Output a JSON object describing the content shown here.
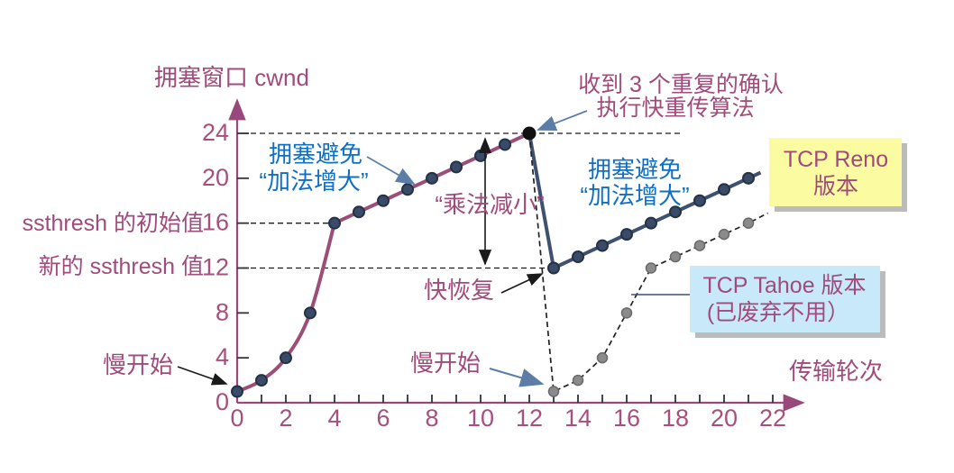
{
  "title": {
    "y_axis": "拥塞窗口 cwnd",
    "x_axis": "传输轮次"
  },
  "labels": {
    "ssthresh_initial": "ssthresh 的初始值",
    "ssthresh_new": "新的 ssthresh 值",
    "slow_start_left": "慢开始",
    "slow_start_mid": "慢开始",
    "fast_recovery": "快恢复",
    "multiplicative_decrease": "“乘法减小”",
    "congestion_avoidance_1_line1": "拥塞避免",
    "congestion_avoidance_1_line2": "“加法增大”",
    "congestion_avoidance_2_line1": "拥塞避免",
    "congestion_avoidance_2_line2": "“加法增大”",
    "dup_ack_line1": "收到 3 个重复的确认",
    "dup_ack_line2": "执行快重传算法",
    "reno_box_line1": "TCP Reno",
    "reno_box_line2": "版本",
    "tahoe_box_line1": "TCP Tahoe 版本",
    "tahoe_box_line2": "(已废弃不用）"
  },
  "colors": {
    "axis": "#98487A",
    "tick": "#333333",
    "tick_label": "#A4517E",
    "text_purple": "#A04B7C",
    "text_blue": "#0F6FC5",
    "guide_dash": "#1A1A1A",
    "arrow_steel": "#5C7EA6",
    "arrow_black": "#1A1A1A",
    "reno_box_bg": "#FBFBA2",
    "tahoe_box_bg": "#C8E9F9",
    "box_shadow": "#BBBBBB"
  },
  "chart_data": {
    "type": "line",
    "xlabel": "传输轮次",
    "ylabel": "拥塞窗口 cwnd",
    "xlim": [
      0,
      22
    ],
    "ylim": [
      0,
      24
    ],
    "x_major_ticks": [
      0,
      2,
      4,
      6,
      8,
      10,
      12,
      14,
      16,
      18,
      20,
      22
    ],
    "x_minor_step": 1,
    "y_ticks": [
      0,
      4,
      8,
      12,
      16,
      20,
      24
    ],
    "ssthresh_initial_value": 16,
    "ssthresh_new_value": 12,
    "series": [
      {
        "name": "reno-slow-start-and-congestion-avoidance",
        "style": "solid",
        "color": "#9C4E78",
        "width": 4,
        "smooth_until_index": 4,
        "points": [
          [
            0,
            1
          ],
          [
            1,
            2
          ],
          [
            2,
            4
          ],
          [
            3,
            8
          ],
          [
            4,
            16
          ],
          [
            5,
            17
          ],
          [
            6,
            18
          ],
          [
            7,
            19
          ],
          [
            8,
            20
          ],
          [
            9,
            21
          ],
          [
            10,
            22
          ],
          [
            11,
            23
          ],
          [
            12,
            24
          ]
        ],
        "dot": {
          "fill": "#3A4B68",
          "stroke": "#243248",
          "r": 6,
          "sw": 2
        },
        "last_dot": {
          "fill": "#111111",
          "stroke": "#111111",
          "r": 7,
          "sw": 1
        }
      },
      {
        "name": "tcp-reno-fast-recovery",
        "style": "solid",
        "color": "#3E5170",
        "width": 4,
        "skip_first_dot": true,
        "points": [
          [
            12,
            24
          ],
          [
            13,
            12
          ],
          [
            14,
            13
          ],
          [
            15,
            14
          ],
          [
            16,
            15
          ],
          [
            17,
            16
          ],
          [
            18,
            17
          ],
          [
            19,
            18
          ],
          [
            20,
            19
          ],
          [
            21,
            20
          ]
        ],
        "extend_to": [
          21.5,
          20.5
        ],
        "dot": {
          "fill": "#3A4B68",
          "stroke": "#243248",
          "r": 6,
          "sw": 2
        }
      },
      {
        "name": "tcp-tahoe",
        "style": "dashed",
        "color": "#222222",
        "width": 1.7,
        "skip_first_dot": true,
        "points": [
          [
            12,
            24
          ],
          [
            13,
            1
          ],
          [
            14,
            2
          ],
          [
            15,
            4
          ],
          [
            16,
            8
          ],
          [
            17,
            12
          ],
          [
            18,
            13
          ],
          [
            19,
            14
          ],
          [
            20,
            15
          ],
          [
            21,
            16
          ]
        ],
        "extend_to": [
          21.8,
          16.9
        ],
        "dot": {
          "fill": "#8B8B8B",
          "stroke": "#6A6A6A",
          "r": 5.5,
          "sw": 1.5
        }
      }
    ],
    "dashed_guides": [
      {
        "y": 24,
        "x_to_value": 18.3
      },
      {
        "y": 16,
        "x_to_value": 4
      },
      {
        "y": 12,
        "x_to_value": 12.8
      }
    ]
  }
}
